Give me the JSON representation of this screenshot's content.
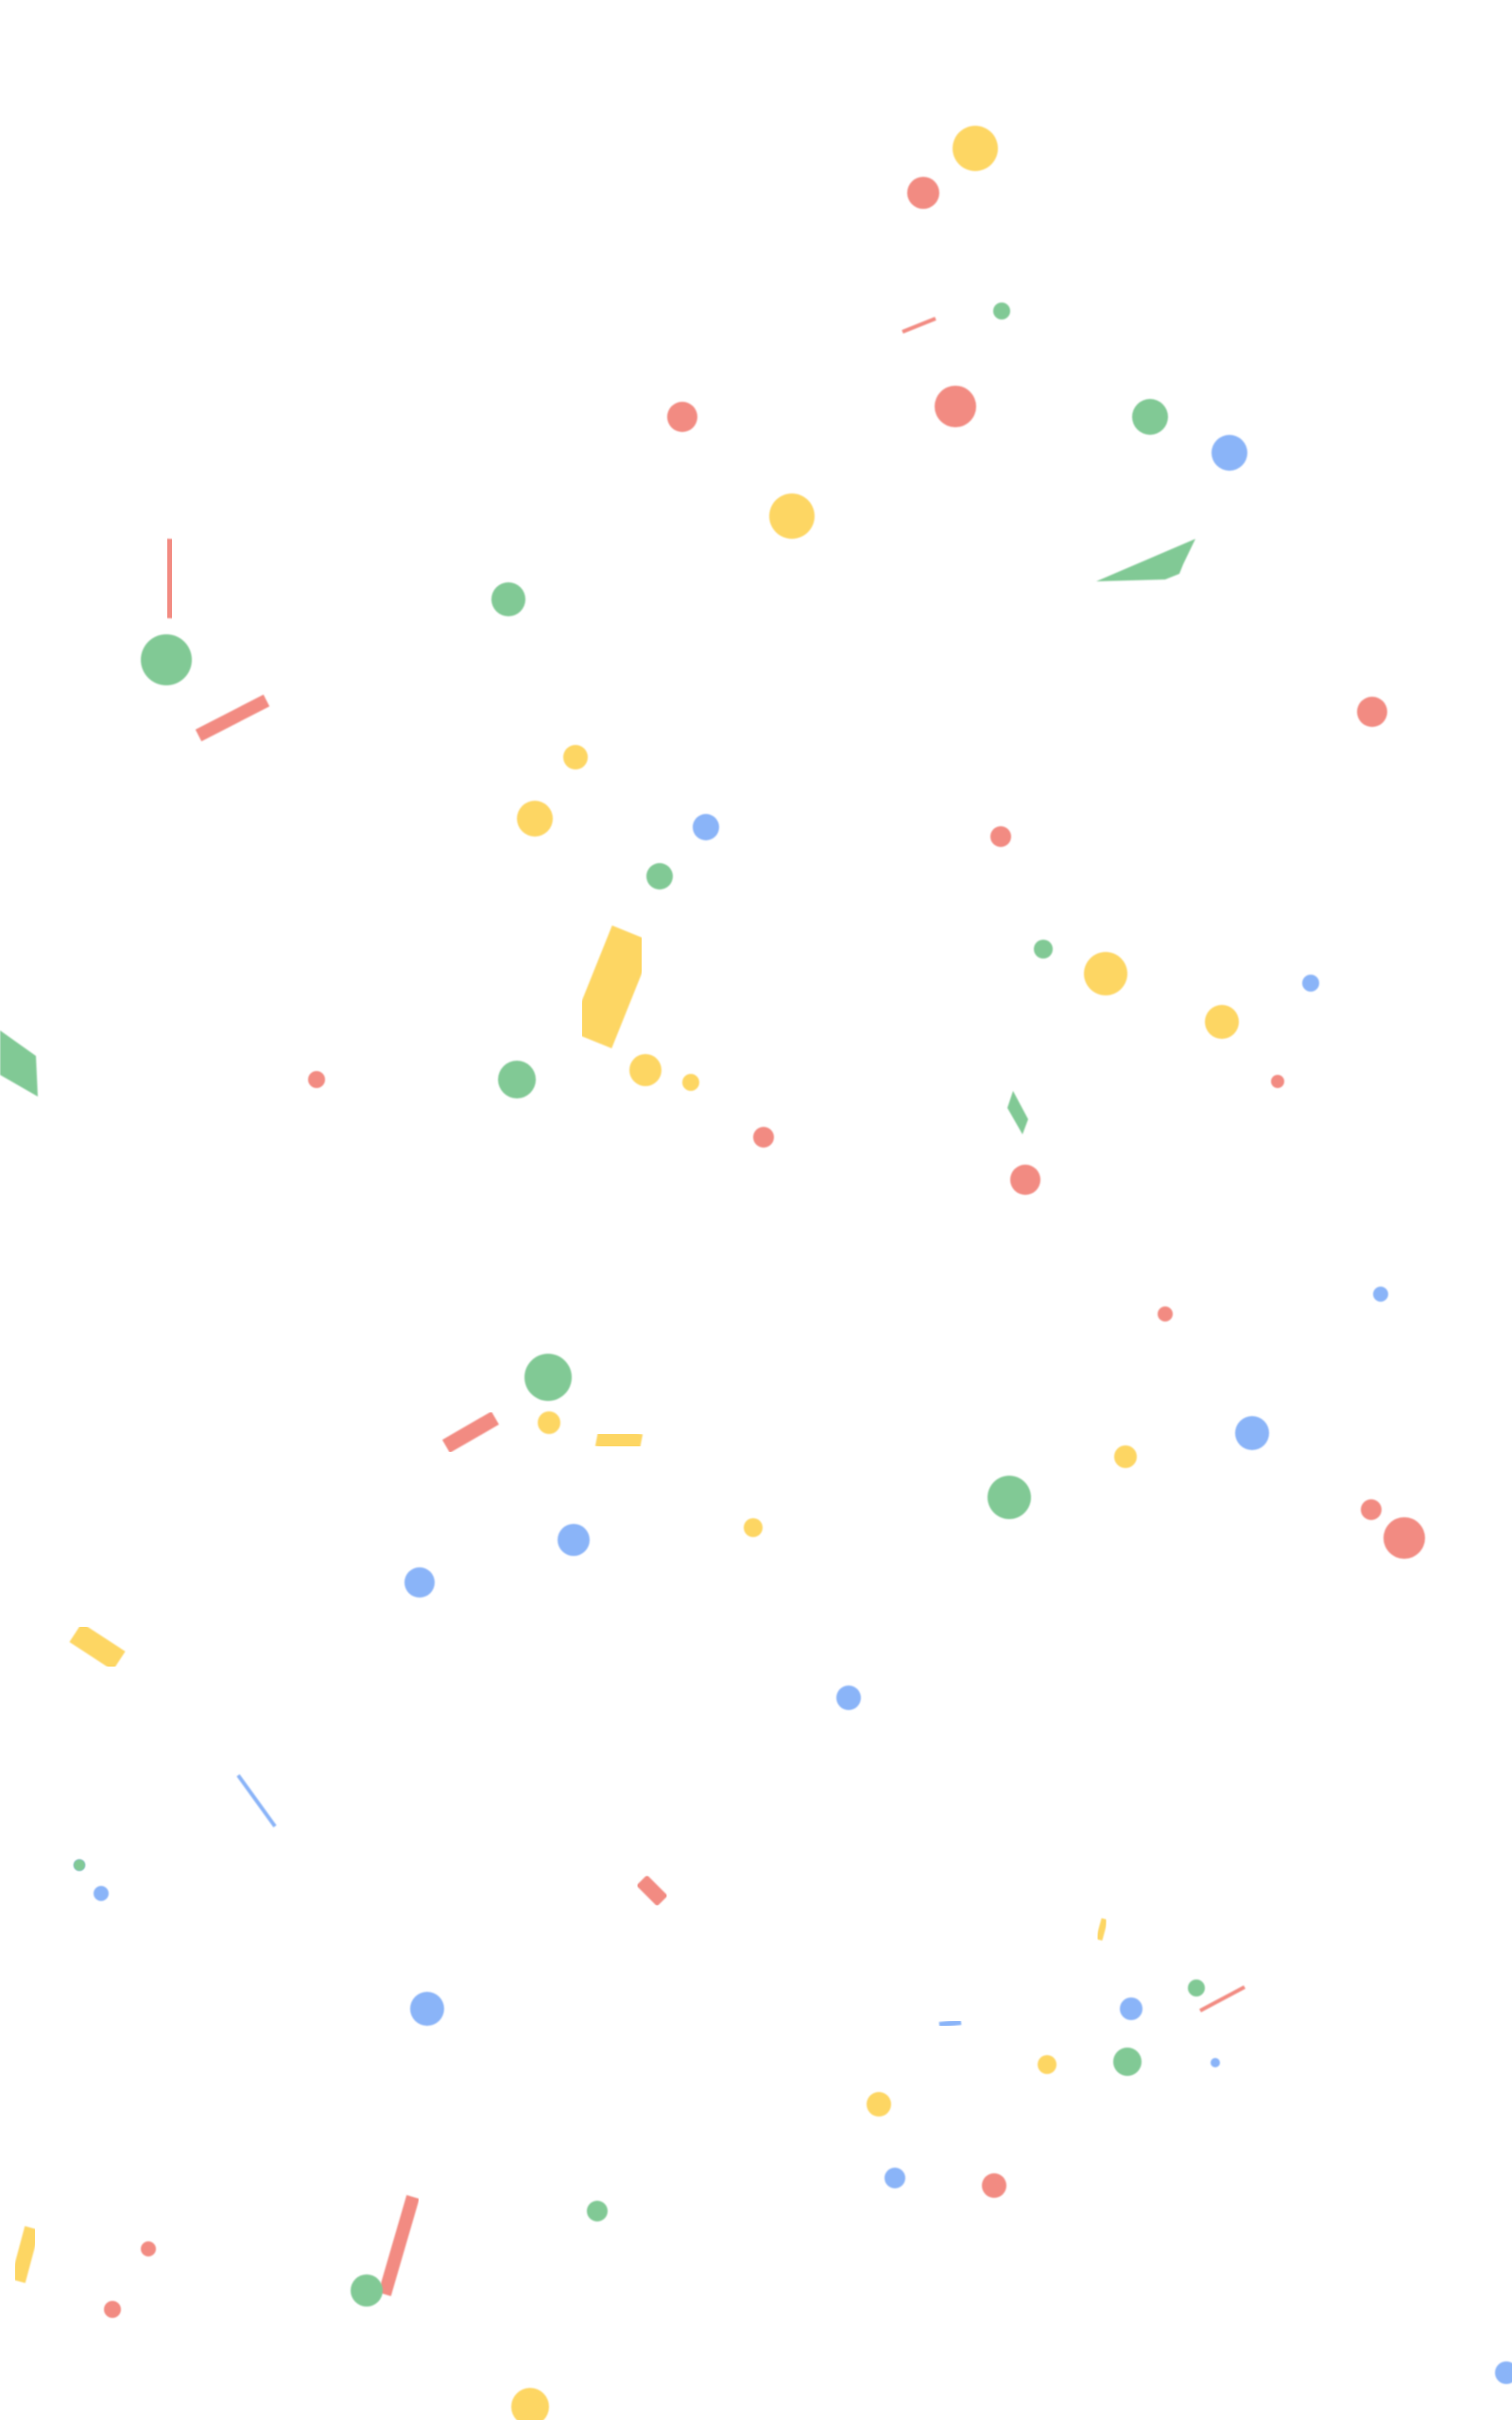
{
  "screen": {
    "name": "celebration-confetti-overlay",
    "background": "#ffffff"
  },
  "palette": {
    "red": "#f28b82",
    "yellow": "#fdd663",
    "green": "#81c995",
    "blue": "#8ab4f8"
  },
  "confetti": {
    "pieces": [
      {
        "kind": "dot",
        "color": "yellow"
      },
      {
        "kind": "dot",
        "color": "red"
      },
      {
        "kind": "strip",
        "color": "red"
      },
      {
        "kind": "dot",
        "color": "green"
      },
      {
        "kind": "dot",
        "color": "red"
      },
      {
        "kind": "dot",
        "color": "red"
      },
      {
        "kind": "dot",
        "color": "green"
      },
      {
        "kind": "dot",
        "color": "blue"
      },
      {
        "kind": "dot",
        "color": "yellow"
      },
      {
        "kind": "parallelogram",
        "color": "green"
      },
      {
        "kind": "strip",
        "color": "red"
      },
      {
        "kind": "dot",
        "color": "green"
      },
      {
        "kind": "dot",
        "color": "green"
      },
      {
        "kind": "strip",
        "color": "red"
      },
      {
        "kind": "dot",
        "color": "red"
      },
      {
        "kind": "dot",
        "color": "yellow"
      },
      {
        "kind": "dot",
        "color": "yellow"
      },
      {
        "kind": "dot",
        "color": "blue"
      },
      {
        "kind": "dot",
        "color": "green"
      },
      {
        "kind": "dot",
        "color": "red"
      },
      {
        "kind": "strip",
        "color": "yellow"
      },
      {
        "kind": "dot",
        "color": "green"
      },
      {
        "kind": "dot",
        "color": "yellow"
      },
      {
        "kind": "dot",
        "color": "yellow"
      },
      {
        "kind": "dot",
        "color": "blue"
      },
      {
        "kind": "parallelogram",
        "color": "green"
      },
      {
        "kind": "dot",
        "color": "red"
      },
      {
        "kind": "dot",
        "color": "green"
      },
      {
        "kind": "dot",
        "color": "yellow"
      },
      {
        "kind": "dot",
        "color": "yellow"
      },
      {
        "kind": "dot",
        "color": "red"
      },
      {
        "kind": "parallelogram",
        "color": "green"
      },
      {
        "kind": "dot",
        "color": "red"
      },
      {
        "kind": "dot",
        "color": "red"
      },
      {
        "kind": "dot",
        "color": "blue"
      },
      {
        "kind": "dot",
        "color": "red"
      },
      {
        "kind": "dot",
        "color": "green"
      },
      {
        "kind": "dot",
        "color": "yellow"
      },
      {
        "kind": "strip",
        "color": "red"
      },
      {
        "kind": "strip",
        "color": "yellow"
      },
      {
        "kind": "dot",
        "color": "blue"
      },
      {
        "kind": "dot",
        "color": "yellow"
      },
      {
        "kind": "dot",
        "color": "green"
      },
      {
        "kind": "dot",
        "color": "blue"
      },
      {
        "kind": "dot",
        "color": "red"
      },
      {
        "kind": "dot",
        "color": "red"
      },
      {
        "kind": "dot",
        "color": "blue"
      },
      {
        "kind": "dot",
        "color": "yellow"
      },
      {
        "kind": "dot",
        "color": "blue"
      },
      {
        "kind": "strip",
        "color": "yellow"
      },
      {
        "kind": "dot",
        "color": "blue"
      },
      {
        "kind": "strip",
        "color": "blue"
      },
      {
        "kind": "dot",
        "color": "green"
      },
      {
        "kind": "dot",
        "color": "blue"
      },
      {
        "kind": "strip",
        "color": "red"
      },
      {
        "kind": "dot",
        "color": "blue"
      },
      {
        "kind": "strip",
        "color": "yellow"
      },
      {
        "kind": "dot",
        "color": "green"
      },
      {
        "kind": "strip",
        "color": "red"
      },
      {
        "kind": "dot",
        "color": "blue"
      },
      {
        "kind": "strip",
        "color": "blue"
      },
      {
        "kind": "dot",
        "color": "yellow"
      },
      {
        "kind": "dot",
        "color": "green"
      },
      {
        "kind": "dot",
        "color": "blue"
      },
      {
        "kind": "dot",
        "color": "yellow"
      },
      {
        "kind": "dot",
        "color": "blue"
      },
      {
        "kind": "dot",
        "color": "red"
      },
      {
        "kind": "dot",
        "color": "green"
      },
      {
        "kind": "strip",
        "color": "red"
      },
      {
        "kind": "dot",
        "color": "green"
      },
      {
        "kind": "strip",
        "color": "yellow"
      },
      {
        "kind": "dot",
        "color": "red"
      },
      {
        "kind": "dot",
        "color": "red"
      },
      {
        "kind": "dot",
        "color": "yellow"
      },
      {
        "kind": "dot",
        "color": "blue"
      }
    ]
  }
}
